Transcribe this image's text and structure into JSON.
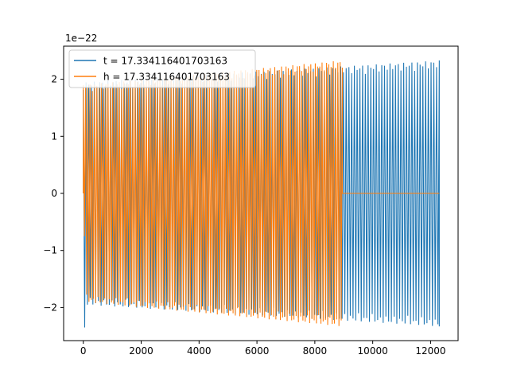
{
  "chart_data": {
    "type": "line",
    "title": "",
    "xlabel": "",
    "ylabel": "",
    "offset_text": "1e−22",
    "xlim": [
      -680,
      12950
    ],
    "ylim": [
      -2.58,
      2.58
    ],
    "x_ticks": [
      0,
      2000,
      4000,
      6000,
      8000,
      10000,
      12000
    ],
    "x_tick_labels": [
      "0",
      "2000",
      "4000",
      "6000",
      "8000",
      "10000",
      "12000"
    ],
    "y_ticks": [
      -2,
      -1,
      0,
      1,
      2
    ],
    "y_tick_labels": [
      "−2",
      "−1",
      "0",
      "1",
      "2"
    ],
    "grid": false,
    "legend_position": "top-left",
    "series": [
      {
        "name": "t = 17.334116401703163",
        "color": "#1f77b4",
        "x_end": 12300,
        "cycles": 130,
        "amp_start": 1.95,
        "amp_end": 2.33,
        "spike": 2.35
      },
      {
        "name": "h = 17.334116401703163",
        "color": "#ff7f0e",
        "x_end": 8950,
        "flat_end": 12300,
        "cycles": 115,
        "amp_start": 1.9,
        "amp_end": 2.33,
        "spike": 0.75
      }
    ]
  }
}
